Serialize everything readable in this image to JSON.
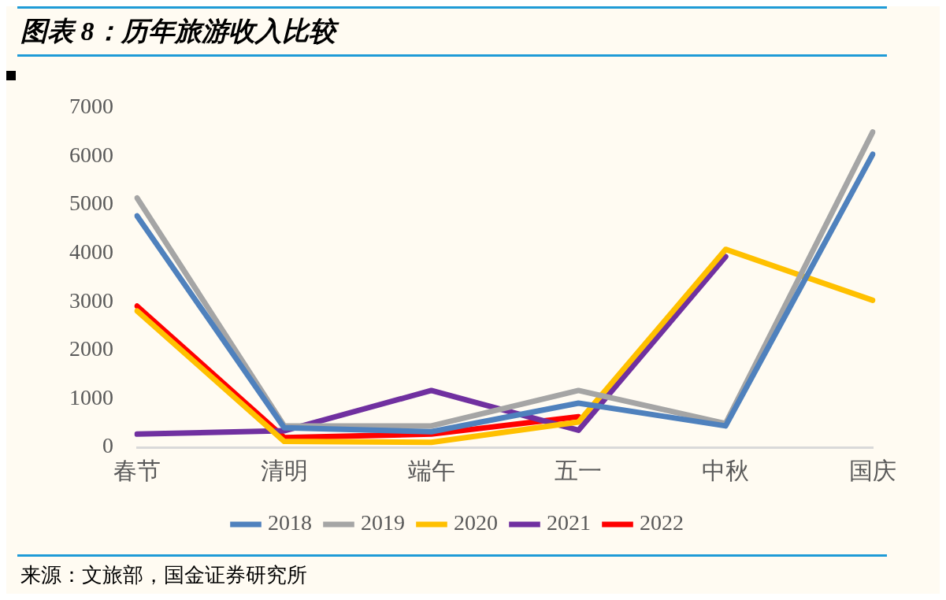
{
  "chart_data": {
    "type": "line",
    "title": "图表 8：历年旅游收入比较",
    "categories": [
      "春节",
      "清明",
      "端午",
      "五一",
      "中秋",
      "国庆"
    ],
    "series": [
      {
        "name": "2018",
        "color": "#4f81bd",
        "values": [
          4770,
          400,
          320,
          910,
          440,
          6040
        ]
      },
      {
        "name": "2019",
        "color": "#a5a5a5",
        "values": [
          5140,
          440,
          440,
          1170,
          490,
          6500
        ]
      },
      {
        "name": "2020",
        "color": "#ffc000",
        "values": [
          2810,
          120,
          100,
          520,
          4080,
          3030
        ]
      },
      {
        "name": "2021",
        "color": "#7030a0",
        "values": [
          270,
          340,
          1170,
          350,
          3930,
          null
        ]
      },
      {
        "name": "2022",
        "color": "#ff0000",
        "values": [
          2910,
          200,
          270,
          630,
          null,
          null
        ]
      }
    ],
    "ylim": [
      0,
      7000
    ],
    "yticks": [
      0,
      1000,
      2000,
      3000,
      4000,
      5000,
      6000,
      7000
    ],
    "grid": false,
    "legend": "bottom",
    "marker": "none",
    "line_style": "solid",
    "annotations": [
      "来源：文旅部，国金证券研究所"
    ]
  }
}
